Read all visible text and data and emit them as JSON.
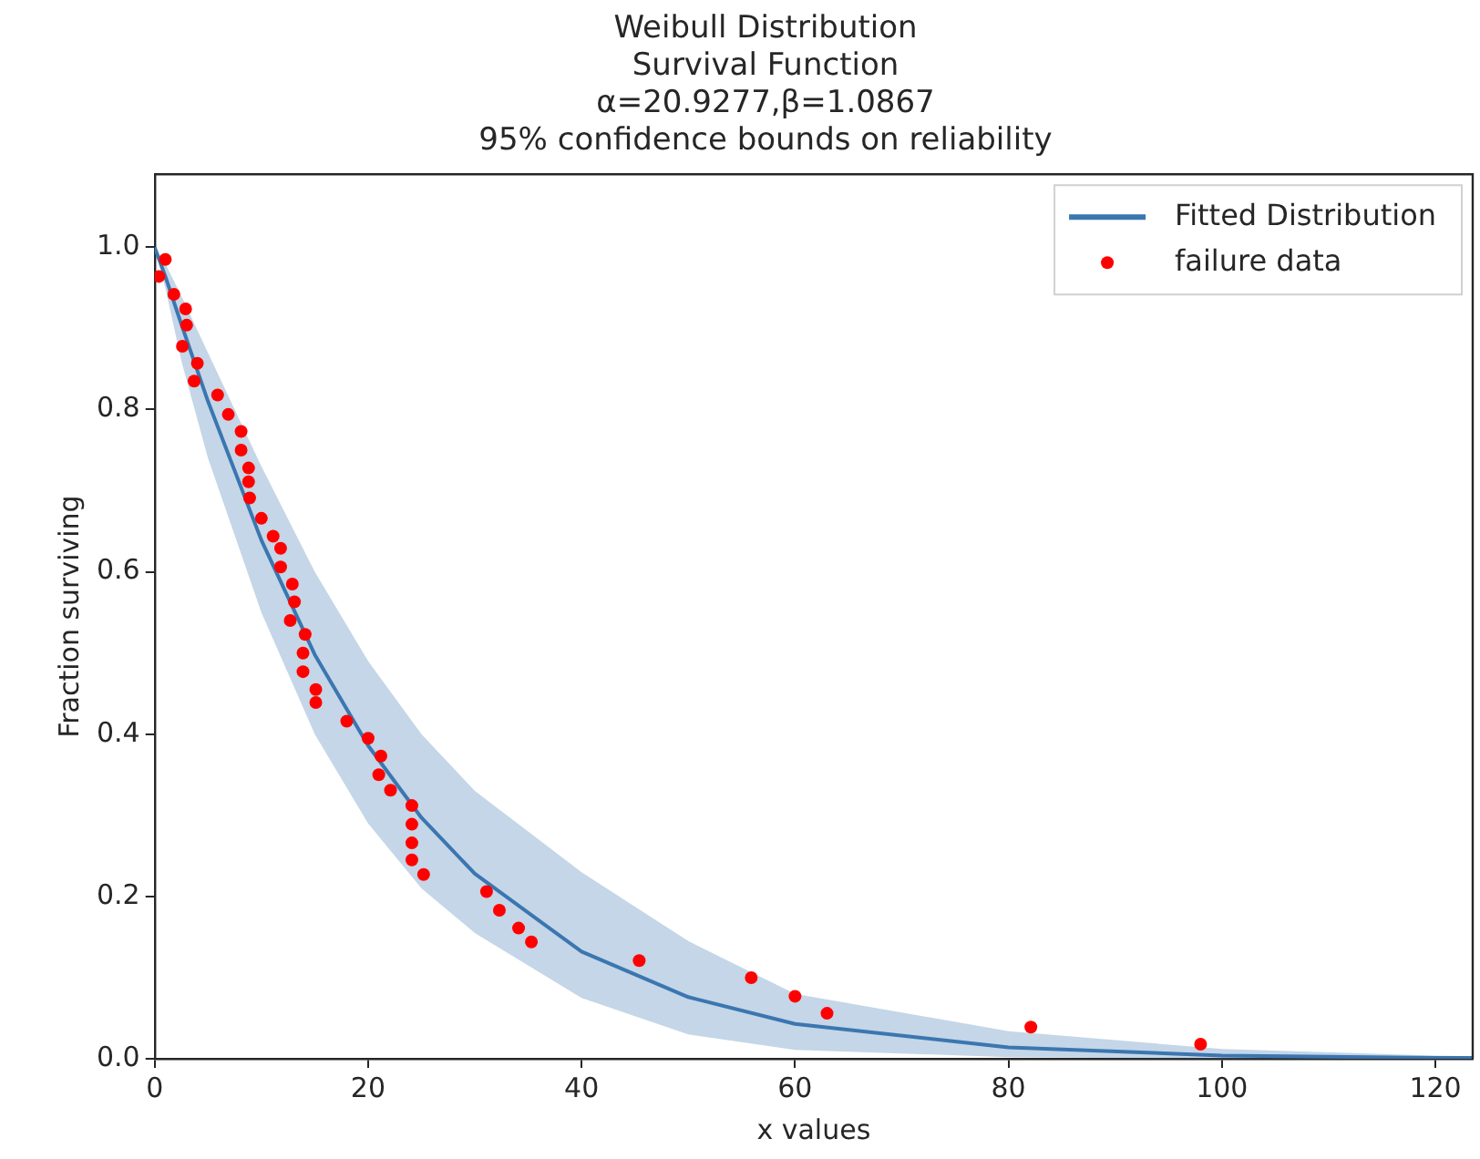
{
  "chart_data": {
    "type": "line",
    "title": [
      "Weibull Distribution",
      "Survival Function",
      "α=20.9277,β=1.0867",
      "95% confidence bounds on reliability"
    ],
    "xlabel": "x values",
    "ylabel": "Fraction surviving",
    "xlim": [
      0,
      123.5
    ],
    "ylim": [
      0,
      1.09
    ],
    "xticks": [
      0,
      20,
      40,
      60,
      80,
      100,
      120
    ],
    "yticks": [
      {
        "value": 0,
        "label": "0.0"
      },
      0.2,
      0.4,
      0.6,
      0.8,
      {
        "value": 1,
        "label": "1.0"
      }
    ],
    "grid": false,
    "legend": "top right",
    "series": [
      {
        "type": "line",
        "name": "Fitted Distribution",
        "color": "#3b76b0",
        "marker": "none",
        "line_style": "solid",
        "x": [
          0,
          1,
          2.5,
          5,
          10,
          15,
          20,
          25,
          30,
          40,
          50,
          60,
          80,
          100,
          120,
          123.5
        ],
        "values": [
          1,
          0.964,
          0.905,
          0.81,
          0.639,
          0.498,
          0.386,
          0.297,
          0.228,
          0.132,
          0.076,
          0.043,
          0.014,
          0.004,
          0.001,
          0.001
        ],
        "lower": [
          1,
          0.95,
          0.86,
          0.74,
          0.55,
          0.4,
          0.29,
          0.21,
          0.155,
          0.075,
          0.03,
          0.011,
          0.002,
          0,
          0,
          0
        ],
        "upper": [
          1,
          0.98,
          0.94,
          0.87,
          0.73,
          0.6,
          0.49,
          0.4,
          0.33,
          0.23,
          0.145,
          0.08,
          0.034,
          0.012,
          0.004,
          0.003
        ]
      },
      {
        "type": "scatter",
        "name": "failure data",
        "color": "#ff0000",
        "marker": "circle",
        "x": [
          0.4,
          1.0,
          1.8,
          2.9,
          3.0,
          2.6,
          4.0,
          3.7,
          5.9,
          6.9,
          8.1,
          8.1,
          8.8,
          8.8,
          8.9,
          10.0,
          11.1,
          11.8,
          11.8,
          12.9,
          13.1,
          12.7,
          14.1,
          13.9,
          13.9,
          15.1,
          15.1,
          18.0,
          20.0,
          21.2,
          21.0,
          22.1,
          24.1,
          24.1,
          24.1,
          24.1,
          25.2,
          31.1,
          32.3,
          34.1,
          35.3,
          45.4,
          55.9,
          60.0,
          63.0,
          82.1,
          98.0
        ],
        "values": [
          0.964,
          0.985,
          0.942,
          0.924,
          0.904,
          0.878,
          0.857,
          0.835,
          0.818,
          0.794,
          0.773,
          0.75,
          0.728,
          0.711,
          0.691,
          0.666,
          0.644,
          0.629,
          0.606,
          0.585,
          0.563,
          0.54,
          0.523,
          0.5,
          0.477,
          0.455,
          0.439,
          0.416,
          0.395,
          0.373,
          0.35,
          0.331,
          0.312,
          0.289,
          0.266,
          0.245,
          0.227,
          0.206,
          0.183,
          0.161,
          0.144,
          0.121,
          0.1,
          0.077,
          0.056,
          0.039,
          0.018
        ]
      }
    ]
  }
}
